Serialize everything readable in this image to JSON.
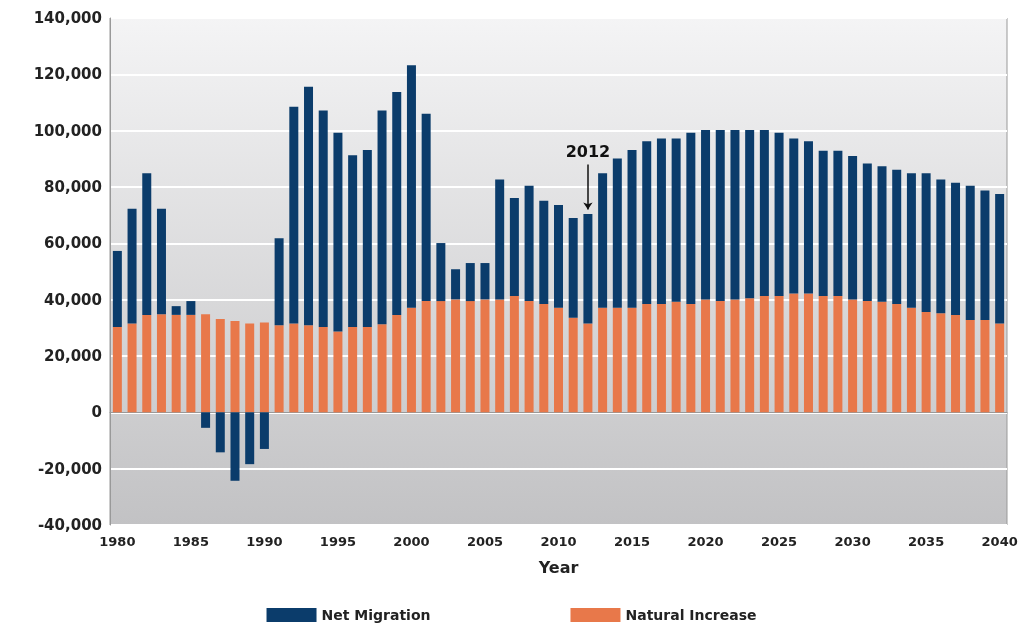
{
  "chart_data": {
    "type": "bar",
    "stacked": true,
    "xlabel": "Year",
    "x": [
      1980,
      1981,
      1982,
      1983,
      1984,
      1985,
      1986,
      1987,
      1988,
      1989,
      1990,
      1991,
      1992,
      1993,
      1994,
      1995,
      1996,
      1997,
      1998,
      1999,
      2000,
      2001,
      2002,
      2003,
      2004,
      2005,
      2006,
      2007,
      2008,
      2009,
      2010,
      2011,
      2012,
      2013,
      2014,
      2015,
      2016,
      2017,
      2018,
      2019,
      2020,
      2021,
      2022,
      2023,
      2024,
      2025,
      2026,
      2027,
      2028,
      2029,
      2030,
      2031,
      2032,
      2033,
      2034,
      2035,
      2036,
      2037,
      2038,
      2039,
      2040
    ],
    "series": [
      {
        "name": "Natural Increase",
        "color": "#e8784a",
        "values": [
          30300,
          31500,
          34600,
          34800,
          34600,
          34600,
          34800,
          33100,
          32400,
          31500,
          31900,
          30900,
          31500,
          30900,
          30300,
          28700,
          30300,
          30300,
          31300,
          34600,
          37100,
          39500,
          39500,
          40100,
          39500,
          40100,
          40100,
          41300,
          39500,
          38500,
          37100,
          33600,
          31500,
          37100,
          37100,
          37100,
          38500,
          38500,
          39300,
          38500,
          40100,
          39500,
          40100,
          40500,
          41300,
          41300,
          42200,
          42200,
          41300,
          41300,
          40100,
          39500,
          39300,
          38500,
          37100,
          35600,
          35200,
          34600,
          32800,
          32800,
          31500
        ]
      },
      {
        "name": "Net Migration",
        "color": "#0b3c6b",
        "values": [
          27000,
          40800,
          50300,
          37500,
          3100,
          4900,
          -5500,
          -14200,
          -24300,
          -18400,
          -13000,
          30900,
          77000,
          84700,
          76900,
          70600,
          61000,
          62800,
          75900,
          79100,
          86100,
          66500,
          20600,
          10700,
          13500,
          12900,
          42600,
          34800,
          40900,
          36600,
          36500,
          35400,
          38900,
          47800,
          53000,
          56000,
          57700,
          58700,
          57900,
          60800,
          60100,
          60700,
          60100,
          59700,
          58900,
          58000,
          55000,
          54000,
          51600,
          51600,
          50900,
          48800,
          48100,
          47600,
          47800,
          49300,
          47500,
          46900,
          47600,
          46000,
          46000
        ]
      }
    ],
    "xlim": [
      1979.5,
      2040.5
    ],
    "xticks": [
      1980,
      1985,
      1990,
      1995,
      2000,
      2005,
      2010,
      2015,
      2020,
      2025,
      2030,
      2035,
      2040
    ],
    "ylim": [
      -40000,
      140000
    ],
    "yticks": [
      {
        "value": -40000,
        "label": "-40,000"
      },
      {
        "value": -20000,
        "label": "-20,000"
      },
      0,
      {
        "value": 20000,
        "label": "20,000"
      },
      {
        "value": 40000,
        "label": "40,000"
      },
      {
        "value": 60000,
        "label": "60,000"
      },
      {
        "value": 80000,
        "label": "80,000"
      },
      {
        "value": 100000,
        "label": "100,000"
      },
      {
        "value": 120000,
        "label": "120,000"
      },
      {
        "value": 140000,
        "label": "140,000"
      }
    ],
    "grid": "y",
    "legend": "bottom",
    "annotations": [
      {
        "text": "2012",
        "x": 2012,
        "y": 72000
      }
    ]
  }
}
